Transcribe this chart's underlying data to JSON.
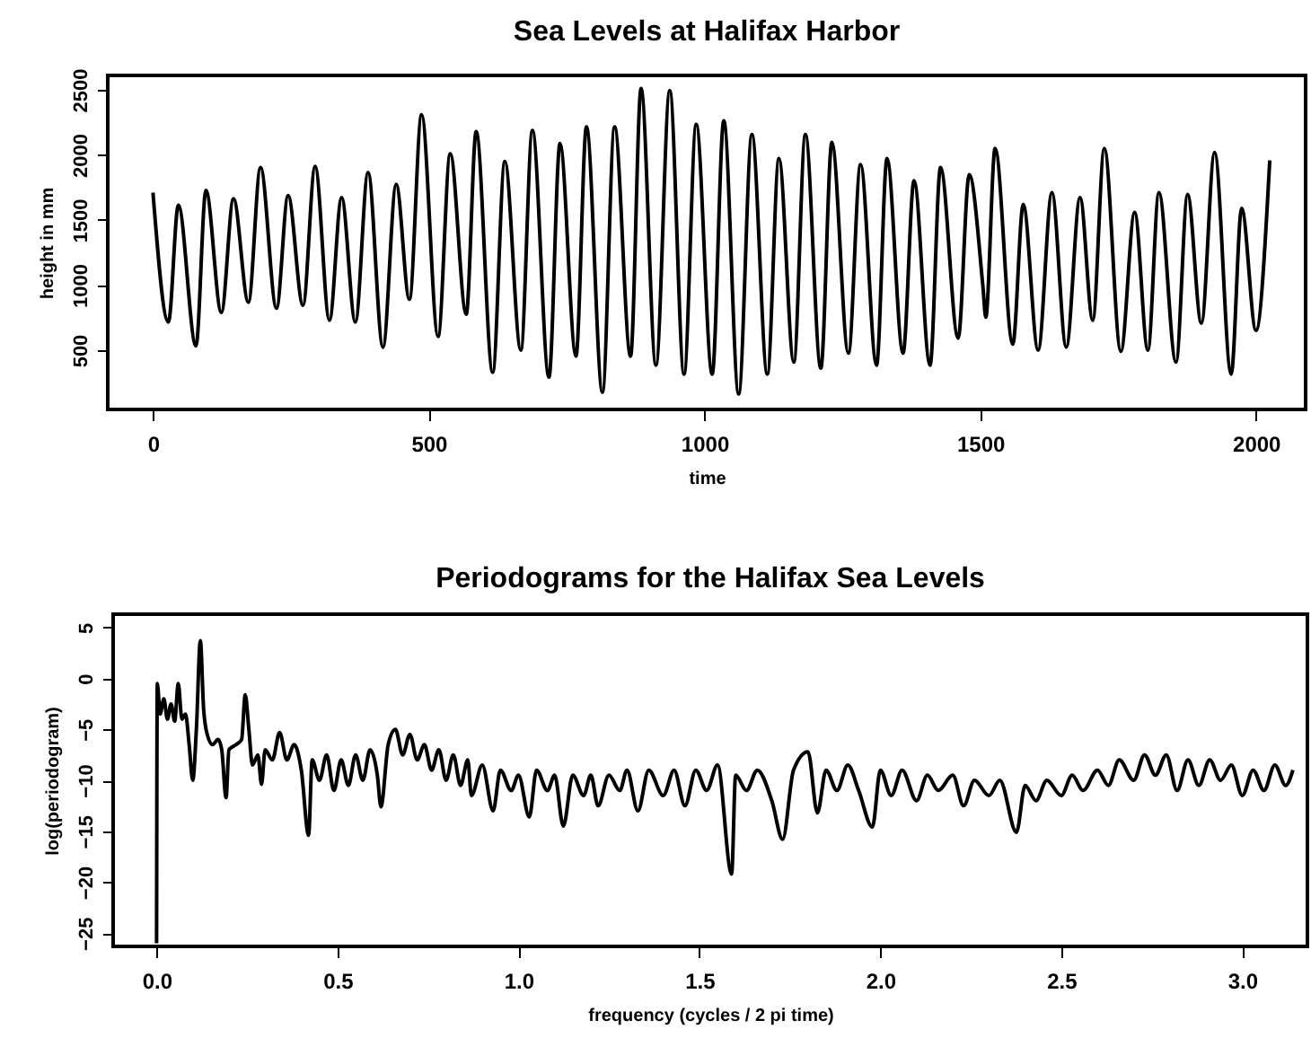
{
  "chart_data": [
    {
      "type": "line",
      "title": "Sea Levels at Halifax Harbor",
      "xlabel": "time",
      "ylabel": "height in mm",
      "xlim": [
        -82,
        2090
      ],
      "ylim": [
        45,
        2610
      ],
      "xticks": [
        0,
        500,
        1000,
        1500,
        2000
      ],
      "yticks": [
        500,
        1000,
        1500,
        2000,
        2500
      ],
      "line_style": "solid",
      "series": [
        {
          "color": "#000000",
          "x": [
            0,
            28,
            46,
            78,
            96,
            124,
            146,
            173,
            195,
            224,
            245,
            272,
            294,
            320,
            342,
            367,
            390,
            417,
            441,
            465,
            487,
            517,
            539,
            568,
            586,
            616,
            638,
            667,
            688,
            718,
            738,
            767,
            786,
            815,
            837,
            866,
            885,
            912,
            937,
            963,
            985,
            1014,
            1035,
            1062,
            1086,
            1114,
            1135,
            1162,
            1183,
            1211,
            1231,
            1261,
            1283,
            1312,
            1331,
            1360,
            1380,
            1409,
            1428,
            1460,
            1480,
            1505,
            1510,
            1527,
            1559,
            1578,
            1605,
            1630,
            1656,
            1681,
            1704,
            1725,
            1755,
            1780,
            1804,
            1824,
            1855,
            1876,
            1901,
            1925,
            1955,
            1974,
            2000,
            2025
          ],
          "values": [
            1710,
            716,
            1613,
            532,
            1728,
            790,
            1664,
            868,
            1903,
            822,
            1687,
            845,
            1912,
            730,
            1673,
            716,
            1866,
            523,
            1774,
            891,
            2308,
            606,
            2009,
            776,
            2179,
            330,
            1949,
            500,
            2188,
            293,
            2087,
            454,
            2216,
            178,
            2216,
            454,
            2510,
            385,
            2492,
            316,
            2234,
            316,
            2262,
            164,
            2156,
            316,
            1972,
            408,
            2156,
            362,
            2096,
            477,
            1926,
            385,
            1972,
            477,
            1802,
            385,
            1903,
            592,
            1848,
            983,
            753,
            2050,
            546,
            1618,
            500,
            1710,
            523,
            1673,
            730,
            2050,
            491,
            1558,
            500,
            1710,
            408,
            1696,
            707,
            2018,
            316,
            1590,
            652,
            1958
          ]
        }
      ]
    },
    {
      "type": "line",
      "title": "Periodograms for the Halifax Sea Levels",
      "xlabel": "frequency (cycles / 2 pi time)",
      "ylabel": "log(periodogram)",
      "xlim": [
        -0.12,
        3.18
      ],
      "ylim": [
        -26.3,
        6.3
      ],
      "xticks": [
        {
          "value": 0,
          "label": "0.0"
        },
        {
          "value": 0.5,
          "label": "0.5"
        },
        {
          "value": 1,
          "label": "1.0"
        },
        {
          "value": 1.5,
          "label": "1.5"
        },
        {
          "value": 2,
          "label": "2.0"
        },
        {
          "value": 2.5,
          "label": "2.5"
        },
        {
          "value": 3,
          "label": "3.0"
        }
      ],
      "yticks": [
        -25,
        -20,
        -15,
        -10,
        -5,
        0,
        5
      ],
      "line_style": "solid",
      "series": [
        {
          "color": "#000000",
          "x": [
            0,
            0.002,
            0.01,
            0.02,
            0.03,
            0.04,
            0.05,
            0.06,
            0.07,
            0.08,
            0.09,
            0.1,
            0.11,
            0.121,
            0.13,
            0.14,
            0.155,
            0.17,
            0.18,
            0.192,
            0.2,
            0.22,
            0.235,
            0.245,
            0.255,
            0.265,
            0.28,
            0.29,
            0.3,
            0.32,
            0.34,
            0.36,
            0.38,
            0.4,
            0.42,
            0.43,
            0.45,
            0.47,
            0.49,
            0.51,
            0.53,
            0.55,
            0.57,
            0.59,
            0.61,
            0.62,
            0.64,
            0.66,
            0.68,
            0.7,
            0.72,
            0.74,
            0.76,
            0.78,
            0.8,
            0.82,
            0.84,
            0.86,
            0.87,
            0.9,
            0.93,
            0.95,
            0.98,
            1,
            1.03,
            1.05,
            1.08,
            1.1,
            1.124,
            1.15,
            1.18,
            1.2,
            1.22,
            1.25,
            1.28,
            1.3,
            1.33,
            1.36,
            1.4,
            1.43,
            1.46,
            1.49,
            1.52,
            1.55,
            1.589,
            1.6,
            1.63,
            1.66,
            1.7,
            1.73,
            1.76,
            1.8,
            1.826,
            1.85,
            1.88,
            1.91,
            1.94,
            1.978,
            2,
            2.03,
            2.06,
            2.1,
            2.13,
            2.16,
            2.2,
            2.23,
            2.26,
            2.3,
            2.33,
            2.376,
            2.4,
            2.43,
            2.46,
            2.5,
            2.53,
            2.56,
            2.6,
            2.63,
            2.66,
            2.7,
            2.73,
            2.76,
            2.79,
            2.82,
            2.85,
            2.88,
            2.91,
            2.94,
            2.97,
            3,
            3.03,
            3.06,
            3.09,
            3.12,
            3.14
          ],
          "values": [
            -26,
            -0.5,
            -3.5,
            -2,
            -4,
            -2.5,
            -4.2,
            -0.5,
            -4,
            -3.5,
            -6.5,
            -10,
            -5,
            3.7,
            -3,
            -5.5,
            -6.5,
            -6,
            -7,
            -11.7,
            -7,
            -6.5,
            -6,
            -1.6,
            -5,
            -8.5,
            -7.5,
            -10.4,
            -7,
            -8,
            -5.3,
            -8,
            -6.5,
            -9,
            -15.4,
            -8,
            -10,
            -7.5,
            -11,
            -8,
            -10.5,
            -7.5,
            -10,
            -7,
            -9.5,
            -12.6,
            -6.5,
            -5,
            -7.5,
            -5.5,
            -8,
            -6.5,
            -9,
            -7,
            -10,
            -7.5,
            -10.5,
            -8,
            -11.5,
            -8.5,
            -13,
            -9,
            -11,
            -9.5,
            -13.6,
            -9,
            -11,
            -9.5,
            -14.5,
            -9.5,
            -11.5,
            -9.5,
            -12.5,
            -9.5,
            -11,
            -9,
            -13,
            -9,
            -11.5,
            -9,
            -12.5,
            -9,
            -11,
            -8.5,
            -19.2,
            -9.5,
            -11,
            -9,
            -12,
            -15.8,
            -9,
            -7.2,
            -13.2,
            -9,
            -11,
            -8.5,
            -11,
            -14.6,
            -9,
            -11.5,
            -9,
            -12,
            -9.5,
            -11,
            -9.5,
            -12.5,
            -10,
            -11.5,
            -10,
            -15.1,
            -10.5,
            -12,
            -10,
            -11.5,
            -9.5,
            -11,
            -9,
            -10.5,
            -8,
            -10,
            -7.5,
            -9.5,
            -7.5,
            -11,
            -8,
            -10.5,
            -8,
            -10,
            -8.5,
            -11.5,
            -9,
            -11,
            -8.5,
            -10.5,
            -9
          ]
        }
      ]
    }
  ]
}
